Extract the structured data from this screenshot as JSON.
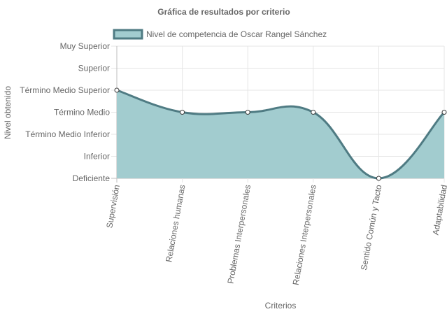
{
  "chart_data": {
    "type": "area",
    "title": "Gráfica de resultados por criterio",
    "xlabel": "Criterios",
    "ylabel": "Nivel obtenido",
    "categories": [
      "Supervisión",
      "Relaciones humanas",
      "Problemas Interpersonales",
      "Relaciones Interpersonales",
      "Sentido Común y Tacto",
      "Adaptabilidad"
    ],
    "y_levels": [
      "Deficiente",
      "Inferior",
      "Término Medio Inferior",
      "Término Medio",
      "Término Medio Superior",
      "Superior",
      "Muy Superior"
    ],
    "series": [
      {
        "name": "Nivel de competencia de Oscar Rangel Sánchez",
        "values": [
          4,
          3,
          3,
          3,
          0,
          3
        ],
        "value_labels": [
          "Término Medio Superior",
          "Término Medio",
          "Término Medio",
          "Término Medio",
          "Deficiente",
          "Término Medio"
        ]
      }
    ],
    "ylim": [
      0,
      6
    ],
    "grid": true,
    "legend_position": "top",
    "colors": {
      "fill": "#a2cccf",
      "line": "#4f7b83",
      "grid": "#e5e5e5",
      "axis": "#bdbdbd",
      "point_fill": "#ffffff",
      "point_stroke": "#3d3d3d"
    }
  }
}
